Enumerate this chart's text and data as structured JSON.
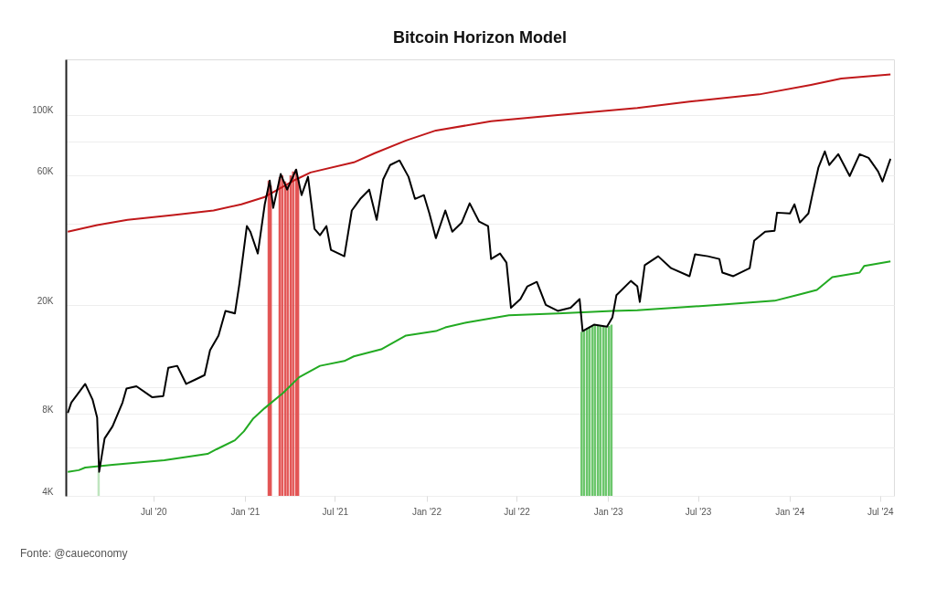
{
  "chart_data": {
    "type": "line",
    "title": "Bitcoin Horizon Model",
    "annotations": [
      "Fonte: @caueconomy"
    ],
    "xlim": [
      "2020-01-07",
      "2024-07-29"
    ],
    "xticks": [
      {
        "value": "2020-07-01",
        "label": "Jul '20"
      },
      {
        "value": "2021-01-01",
        "label": "Jan '21"
      },
      {
        "value": "2021-07-01",
        "label": "Jul '21"
      },
      {
        "value": "2022-01-01",
        "label": "Jan '22"
      },
      {
        "value": "2022-07-01",
        "label": "Jul '22"
      },
      {
        "value": "2023-01-01",
        "label": "Jan '23"
      },
      {
        "value": "2023-07-01",
        "label": "Jul '23"
      },
      {
        "value": "2024-01-01",
        "label": "Jan '24"
      },
      {
        "value": "2024-07-01",
        "label": "Jul '24"
      }
    ],
    "log": "y",
    "ylim": [
      4000,
      160000
    ],
    "yticks": [
      {
        "value": 4000,
        "label": "4K"
      },
      {
        "value": 6000,
        "label": null
      },
      {
        "value": 8000,
        "label": "8K"
      },
      {
        "value": 10000,
        "label": null
      },
      {
        "value": 20000,
        "label": "20K"
      },
      {
        "value": 40000,
        "label": null
      },
      {
        "value": 60000,
        "label": "60K"
      },
      {
        "value": 80000,
        "label": null
      },
      {
        "value": 100000,
        "label": "100K"
      }
    ],
    "grid": "y",
    "series": [
      {
        "type": "bar",
        "color": "#b8e2b8",
        "x": [
          "2020-03-13"
        ],
        "values": [
          4900
        ]
      },
      {
        "type": "bar",
        "color": "#e04545",
        "x": [
          "2021-02-18",
          "2021-02-22",
          "2021-03-12",
          "2021-03-17",
          "2021-03-23",
          "2021-03-28",
          "2021-04-03",
          "2021-04-08",
          "2021-04-14",
          "2021-04-18"
        ],
        "values": [
          57400,
          55000,
          59000,
          60000,
          57000,
          55000,
          60000,
          62000,
          63000,
          58000
        ]
      },
      {
        "type": "bar",
        "color": "#5cc05c",
        "x": [
          "2022-11-09",
          "2022-11-14",
          "2022-11-20",
          "2022-11-25",
          "2022-12-01",
          "2022-12-06",
          "2022-12-12",
          "2022-12-17",
          "2022-12-23",
          "2022-12-28",
          "2023-01-03",
          "2023-01-08"
        ],
        "values": [
          16000,
          16200,
          16500,
          16700,
          16800,
          17000,
          16900,
          16800,
          16700,
          16600,
          16800,
          17000
        ]
      },
      {
        "color": "#22aa22",
        "x": [
          "2020-01-11",
          "2020-02-02",
          "2020-02-15",
          "2020-04-10",
          "2020-07-23",
          "2020-10-18",
          "2020-11-05",
          "2020-12-12",
          "2020-12-30",
          "2021-01-18",
          "2021-02-10",
          "2021-03-19",
          "2021-04-20",
          "2021-06-01",
          "2021-07-20",
          "2021-08-08",
          "2021-10-02",
          "2021-11-21",
          "2022-01-20",
          "2022-02-08",
          "2022-03-22",
          "2022-06-16",
          "2022-09-22",
          "2023-01-10",
          "2023-03-01",
          "2023-08-13",
          "2023-12-02",
          "2024-01-19",
          "2024-02-25",
          "2024-03-27",
          "2024-05-21",
          "2024-05-30",
          "2024-07-22"
        ],
        "values": [
          4900,
          4970,
          5080,
          5200,
          5400,
          5700,
          5930,
          6400,
          6900,
          7700,
          8400,
          9550,
          10900,
          12000,
          12500,
          13000,
          13800,
          15500,
          16100,
          16600,
          17300,
          18400,
          18700,
          19100,
          19200,
          20100,
          20800,
          21900,
          22800,
          25400,
          26400,
          27900,
          29000
        ]
      },
      {
        "color": "#c0181a",
        "x": [
          "2020-01-11",
          "2020-03-10",
          "2020-05-10",
          "2020-08-10",
          "2020-10-30",
          "2020-12-25",
          "2021-02-10",
          "2021-04-14",
          "2021-05-13",
          "2021-08-08",
          "2021-09-19",
          "2021-11-21",
          "2022-01-20",
          "2022-05-11",
          "2022-09-22",
          "2023-03-01",
          "2023-06-14",
          "2023-11-01",
          "2024-02-13",
          "2024-04-14",
          "2024-07-22"
        ],
        "values": [
          37300,
          39400,
          41200,
          42900,
          44600,
          47000,
          50000,
          58000,
          61500,
          67000,
          72400,
          80600,
          87700,
          94800,
          100000,
          106000,
          112000,
          119000,
          129000,
          136000,
          141000
        ]
      },
      {
        "color": "#000000",
        "x": [
          "2020-01-11",
          "2020-01-18",
          "2020-02-15",
          "2020-03-01",
          "2020-03-10",
          "2020-03-14",
          "2020-03-25",
          "2020-04-10",
          "2020-04-30",
          "2020-05-08",
          "2020-05-28",
          "2020-06-29",
          "2020-07-21",
          "2020-07-31",
          "2020-08-18",
          "2020-09-05",
          "2020-09-24",
          "2020-10-12",
          "2020-10-23",
          "2020-11-09",
          "2020-11-23",
          "2020-12-12",
          "2020-12-21",
          "2021-01-05",
          "2021-01-12",
          "2021-01-27",
          "2021-02-10",
          "2021-02-20",
          "2021-02-27",
          "2021-03-14",
          "2021-03-27",
          "2021-04-14",
          "2021-04-25",
          "2021-05-08",
          "2021-05-21",
          "2021-06-01",
          "2021-06-14",
          "2021-06-23",
          "2021-07-20",
          "2021-08-04",
          "2021-08-21",
          "2021-09-08",
          "2021-09-23",
          "2021-10-06",
          "2021-10-20",
          "2021-11-08",
          "2021-11-26",
          "2021-12-09",
          "2021-12-27",
          "2022-01-07",
          "2022-01-20",
          "2022-02-08",
          "2022-02-22",
          "2022-03-13",
          "2022-03-29",
          "2022-04-17",
          "2022-05-05",
          "2022-05-11",
          "2022-05-29",
          "2022-06-11",
          "2022-06-20",
          "2022-07-09",
          "2022-07-23",
          "2022-08-11",
          "2022-08-29",
          "2022-09-22",
          "2022-10-18",
          "2022-11-05",
          "2022-11-11",
          "2022-12-04",
          "2022-12-30",
          "2023-01-10",
          "2023-01-18",
          "2023-02-16",
          "2023-03-01",
          "2023-03-06",
          "2023-03-16",
          "2023-04-12",
          "2023-05-08",
          "2023-06-14",
          "2023-06-25",
          "2023-07-21",
          "2023-08-13",
          "2023-08-19",
          "2023-09-10",
          "2023-10-13",
          "2023-10-22",
          "2023-11-13",
          "2023-12-02",
          "2023-12-07",
          "2024-01-02",
          "2024-01-11",
          "2024-01-22",
          "2024-02-08",
          "2024-02-17",
          "2024-02-28",
          "2024-03-12",
          "2024-03-21",
          "2024-04-08",
          "2024-05-01",
          "2024-05-21",
          "2024-06-08",
          "2024-06-27",
          "2024-07-06",
          "2024-07-22"
        ],
        "values": [
          8060,
          8800,
          10300,
          9000,
          7760,
          4900,
          6500,
          7200,
          8800,
          9900,
          10100,
          9200,
          9300,
          11800,
          12000,
          10300,
          10700,
          11100,
          13700,
          15500,
          19100,
          18700,
          24000,
          39100,
          37300,
          31000,
          47000,
          57400,
          45600,
          60700,
          53200,
          63000,
          50800,
          59300,
          38200,
          36200,
          39100,
          32000,
          30300,
          44600,
          49200,
          53200,
          41200,
          58000,
          65500,
          68100,
          59300,
          49200,
          50800,
          43500,
          35300,
          44600,
          37300,
          40300,
          47400,
          40600,
          39100,
          29600,
          31000,
          28700,
          19600,
          21100,
          23500,
          24400,
          20100,
          19100,
          19600,
          21100,
          16100,
          17000,
          16700,
          18100,
          21800,
          24600,
          23500,
          20600,
          28100,
          30300,
          27400,
          25600,
          30800,
          30300,
          29600,
          26400,
          25600,
          27400,
          34600,
          37300,
          37600,
          43800,
          43500,
          47000,
          40300,
          43500,
          52000,
          64000,
          73500,
          65500,
          71800,
          59700,
          71800,
          69600,
          62100,
          57000,
          69100
        ]
      }
    ]
  }
}
